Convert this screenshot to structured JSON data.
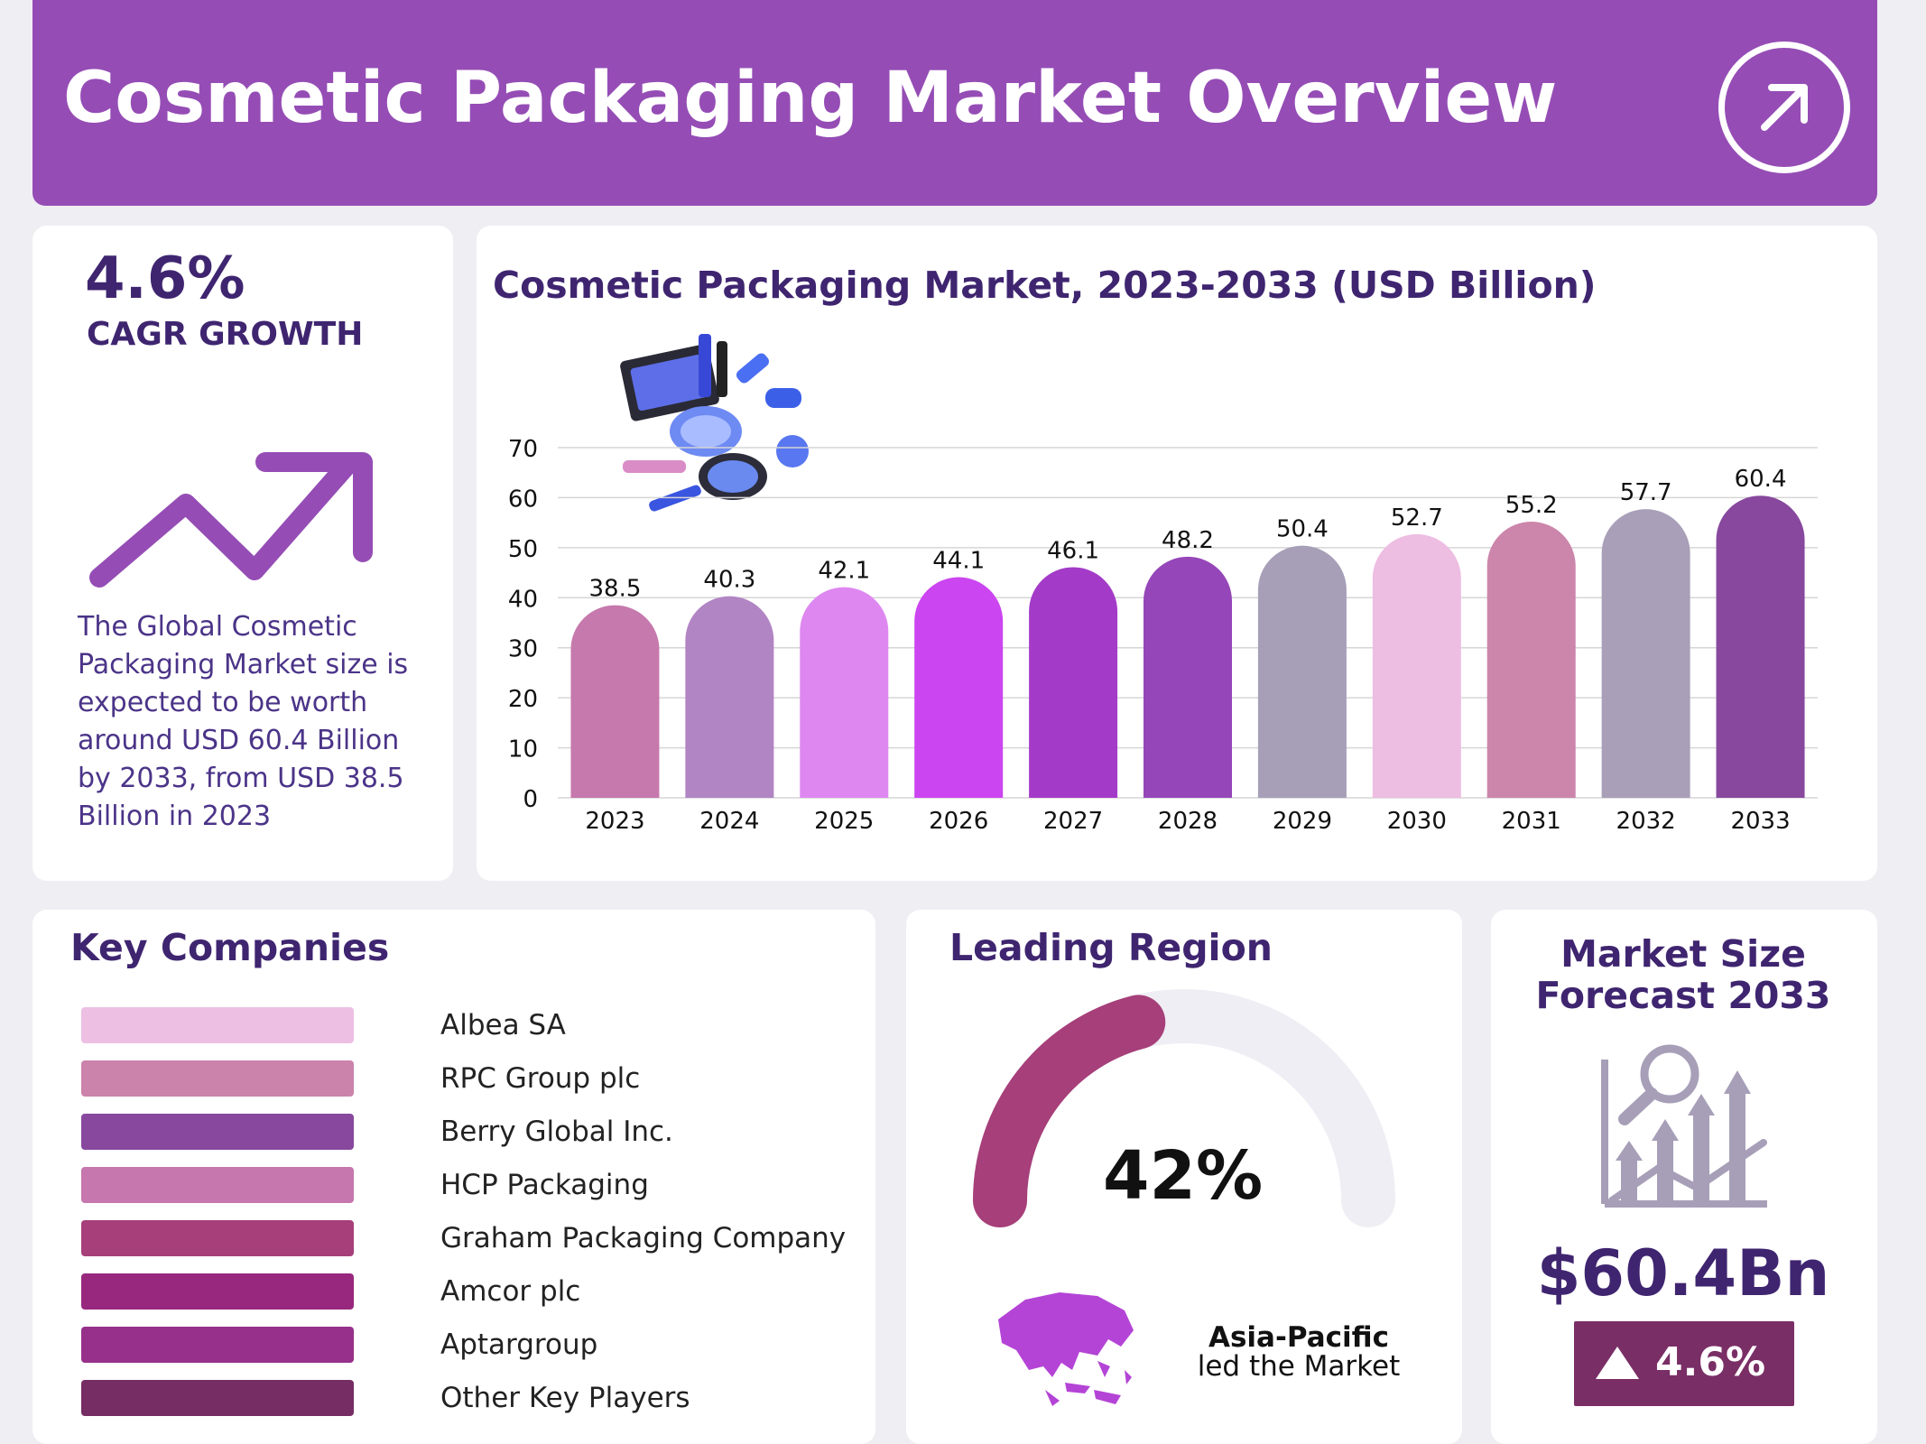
{
  "header": {
    "title": "Cosmetic Packaging Market Overview",
    "icon": "arrow-up-right-icon"
  },
  "cagr": {
    "value": "4.6%",
    "label": "CAGR GROWTH",
    "icon": "trend-up-arrow-icon",
    "description": "The Global Cosmetic Packaging Market size is expected to be worth around USD 60.4 Billion by 2033, from USD 38.5 Billion in 2023"
  },
  "chart_data": {
    "type": "bar",
    "title": "Cosmetic Packaging Market, 2023-2033 (USD Billion)",
    "categories": [
      "2023",
      "2024",
      "2025",
      "2026",
      "2027",
      "2028",
      "2029",
      "2030",
      "2031",
      "2032",
      "2033"
    ],
    "values": [
      38.5,
      40.3,
      42.1,
      44.1,
      46.1,
      48.2,
      50.4,
      52.7,
      55.2,
      57.7,
      60.4
    ],
    "colors": [
      "#c679ad",
      "#b185c3",
      "#de87f0",
      "#cb45f0",
      "#a43bc8",
      "#9546b8",
      "#a79fb8",
      "#edbde2",
      "#cc85ab",
      "#a99fb8",
      "#87489e"
    ],
    "yticks": [
      0,
      10,
      20,
      30,
      40,
      50,
      60,
      70
    ],
    "ylim": [
      0,
      70
    ],
    "grid": true,
    "xlabel": "",
    "ylabel": ""
  },
  "companies": {
    "title": "Key Companies",
    "items": [
      {
        "name": "Albea SA",
        "color": "#edbfe3"
      },
      {
        "name": "RPC Group plc",
        "color": "#cb82ab"
      },
      {
        "name": "Berry Global Inc.",
        "color": "#87489e"
      },
      {
        "name": "HCP Packaging",
        "color": "#c677ad"
      },
      {
        "name": "Graham Packaging Company",
        "color": "#a63f7a"
      },
      {
        "name": "Amcor plc",
        "color": "#97287e"
      },
      {
        "name": "Aptargroup",
        "color": "#96308a"
      },
      {
        "name": "Other Key Players",
        "color": "#752d63"
      }
    ]
  },
  "region": {
    "title": "Leading Region",
    "share": "42%",
    "share_value": 42,
    "name": "Asia-Pacific",
    "subtitle": "led the Market",
    "icon": "asia-pacific-map-icon"
  },
  "forecast": {
    "title_line1": "Market Size",
    "title_line2": "Forecast 2033",
    "value": "$60.4Bn",
    "growth": "4.6%",
    "icon": "market-analysis-icon"
  }
}
